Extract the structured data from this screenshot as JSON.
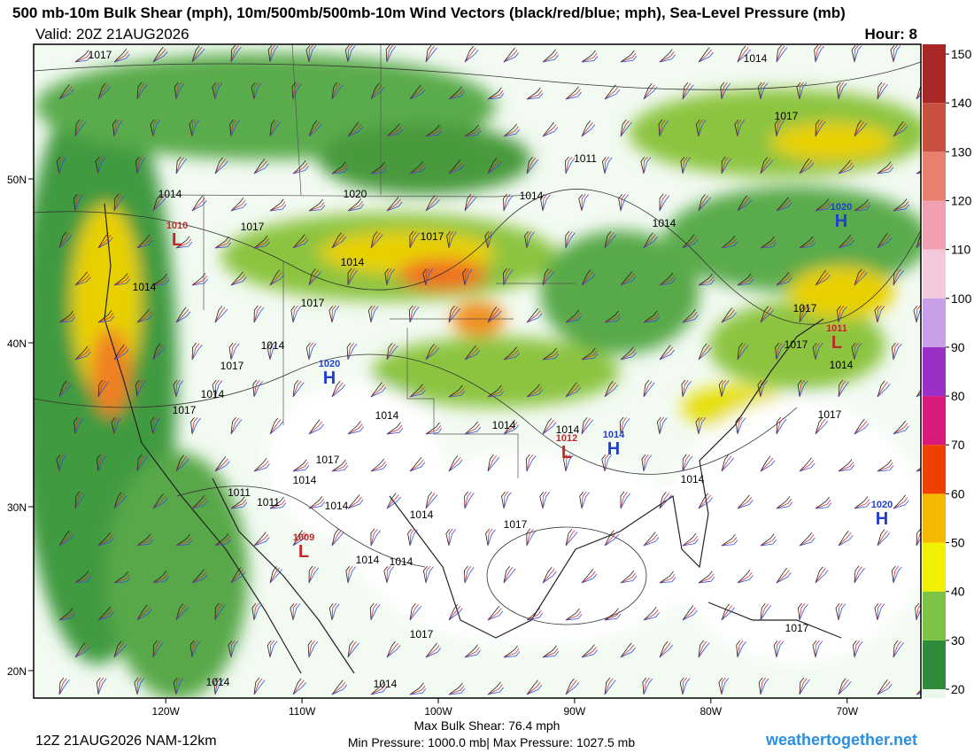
{
  "header": {
    "title": "500 mb-10m Bulk Shear (mph), 10m/500mb/500mb-10m Wind Vectors (black/red/blue; mph), Sea-Level Pressure (mb)",
    "valid": "Valid: 20Z 21AUG2026",
    "hour": "Hour: 8"
  },
  "map": {
    "lat_ticks": [
      {
        "value": 50,
        "label": "50N"
      },
      {
        "value": 40,
        "label": "40N"
      },
      {
        "value": 30,
        "label": "30N"
      },
      {
        "value": 20,
        "label": "20N"
      }
    ],
    "lon_ticks": [
      {
        "value": -120,
        "label": "120W"
      },
      {
        "value": -110,
        "label": "110W"
      },
      {
        "value": -100,
        "label": "100W"
      },
      {
        "value": -90,
        "label": "90W"
      },
      {
        "value": -80,
        "label": "80W"
      },
      {
        "value": -70,
        "label": "70W"
      }
    ],
    "isobar_labels": [
      "1017",
      "1014",
      "1017",
      "1011",
      "1020",
      "1014",
      "1014",
      "1017",
      "1017",
      "1014",
      "1014",
      "1014",
      "1017",
      "1017",
      "1014",
      "1017",
      "1017",
      "1014",
      "1014",
      "1017",
      "1014",
      "1017",
      "1014",
      "1014",
      "1017",
      "1014",
      "1014",
      "1011",
      "1011",
      "1014",
      "1014",
      "1017",
      "1014",
      "1014",
      "1017",
      "1017",
      "1014",
      "1014"
    ],
    "centers": [
      {
        "letter": "L",
        "pressure": "1010"
      },
      {
        "letter": "H",
        "pressure": "1020"
      },
      {
        "letter": "H",
        "pressure": "1020"
      },
      {
        "letter": "L",
        "pressure": "1011"
      },
      {
        "letter": "L",
        "pressure": "1012"
      },
      {
        "letter": "H",
        "pressure": "1014"
      },
      {
        "letter": "H",
        "pressure": "1020"
      },
      {
        "letter": "L",
        "pressure": "1009"
      }
    ]
  },
  "colorbar": {
    "ticks": [
      20,
      30,
      40,
      50,
      60,
      70,
      80,
      90,
      100,
      110,
      120,
      130,
      140,
      150
    ],
    "colors": [
      "#2e8b3a",
      "#7cc243",
      "#f0f000",
      "#f5b800",
      "#f04000",
      "#d81b7a",
      "#9b30c8",
      "#c7a0e8",
      "#f4c8dc",
      "#f0a0b0",
      "#e88070",
      "#c85040",
      "#a82828"
    ]
  },
  "footer": {
    "run": "12Z 21AUG2026 NAM-12km",
    "max_shear": "Max Bulk Shear:  76.4 mph",
    "pressure_range": "Min Pressure: 1000.0 mb| Max Pressure: 1027.5 mb",
    "site": "weathertogether.net"
  }
}
